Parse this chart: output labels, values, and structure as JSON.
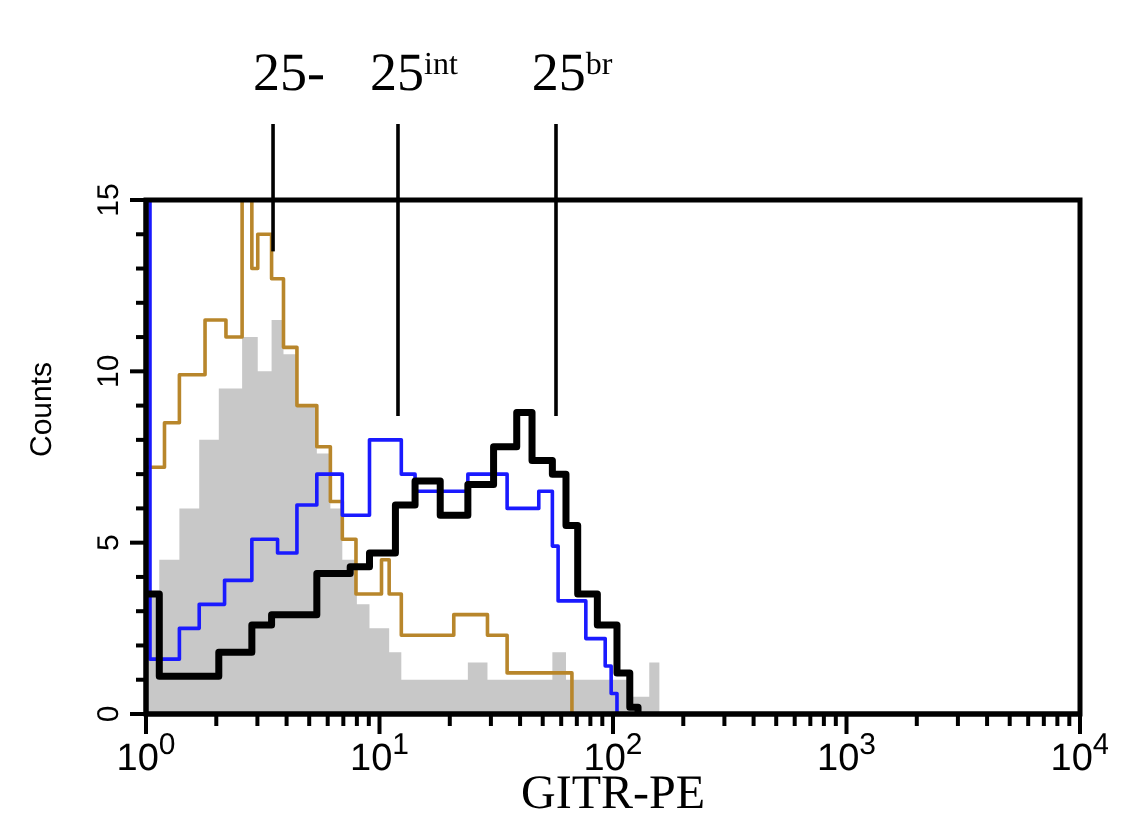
{
  "chart_data": {
    "type": "step",
    "xlabel": "GITR-PE",
    "ylabel": "Counts",
    "log": "x",
    "xlim": [
      1,
      10000
    ],
    "xticks": [
      {
        "value": 1,
        "label": "10$^{0}$"
      },
      {
        "value": 2,
        "label": null
      },
      {
        "value": 3,
        "label": null
      },
      {
        "value": 4,
        "label": null
      },
      {
        "value": 5,
        "label": null
      },
      {
        "value": 6,
        "label": null
      },
      {
        "value": 7,
        "label": null
      },
      {
        "value": 8,
        "label": null
      },
      {
        "value": 9,
        "label": null
      },
      {
        "value": 10,
        "label": "10$^{1}$"
      },
      {
        "value": 20,
        "label": null
      },
      {
        "value": 30,
        "label": null
      },
      {
        "value": 40,
        "label": null
      },
      {
        "value": 50,
        "label": null
      },
      {
        "value": 60,
        "label": null
      },
      {
        "value": 70,
        "label": null
      },
      {
        "value": 80,
        "label": null
      },
      {
        "value": 90,
        "label": null
      },
      {
        "value": 100,
        "label": "10$^{2}$"
      },
      {
        "value": 200,
        "label": null
      },
      {
        "value": 300,
        "label": null
      },
      {
        "value": 400,
        "label": null
      },
      {
        "value": 500,
        "label": null
      },
      {
        "value": 600,
        "label": null
      },
      {
        "value": 700,
        "label": null
      },
      {
        "value": 800,
        "label": null
      },
      {
        "value": 900,
        "label": null
      },
      {
        "value": 1000,
        "label": "10$^{3}$"
      },
      {
        "value": 2000,
        "label": null
      },
      {
        "value": 3000,
        "label": null
      },
      {
        "value": 4000,
        "label": null
      },
      {
        "value": 5000,
        "label": null
      },
      {
        "value": 6000,
        "label": null
      },
      {
        "value": 7000,
        "label": null
      },
      {
        "value": 8000,
        "label": null
      },
      {
        "value": 9000,
        "label": null
      },
      {
        "value": 10000,
        "label": "10$^{4}$"
      }
    ],
    "ylim": [
      0,
      15
    ],
    "yticks": [
      0,
      {
        "value": 1,
        "label": null
      },
      {
        "value": 2,
        "label": null
      },
      {
        "value": 3,
        "label": null
      },
      {
        "value": 4,
        "label": null
      },
      5,
      {
        "value": 6,
        "label": null
      },
      {
        "value": 7,
        "label": null
      },
      {
        "value": 8,
        "label": null
      },
      {
        "value": 9,
        "label": null
      },
      10,
      {
        "value": 11,
        "label": null
      },
      {
        "value": 12,
        "label": null
      },
      {
        "value": 13,
        "label": null
      },
      {
        "value": 14,
        "label": null
      },
      15
    ],
    "series": [
      {
        "type": "area",
        "color": "#c8c8c8",
        "x": [
          1,
          1.14,
          1.39,
          1.69,
          2.05,
          2.58,
          3.01,
          3.45,
          3.88,
          4.43,
          5.39,
          6.16,
          6.93,
          8.0,
          9.06,
          11.0,
          12.4,
          20.8,
          23.9,
          29.0,
          45,
          55,
          62.9,
          104,
          118,
          143,
          158
        ],
        "values": [
          3.5,
          4.5,
          6,
          8,
          9.5,
          11,
          10,
          11.5,
          10.5,
          9,
          7.6,
          6,
          4.5,
          3.2,
          2.5,
          1.8,
          1,
          1,
          1.5,
          1,
          1,
          1.8,
          1,
          1,
          0.5,
          1.5,
          0
        ]
      },
      {
        "color": "#b8862b",
        "x": [
          1,
          1.2,
          1.39,
          1.79,
          2.2,
          2.58,
          2.84,
          3.01,
          3.45,
          3.88,
          4.43,
          5.39,
          6.16,
          6.93,
          7.93,
          10.2,
          11.0,
          12.4,
          14.2,
          20.8,
          29.0,
          35.2,
          66.7,
          118
        ],
        "values": [
          7.2,
          8.5,
          9.9,
          11.5,
          11,
          15,
          13,
          14,
          12.7,
          10.7,
          9,
          7.8,
          6.2,
          5.1,
          3.5,
          4.5,
          3.5,
          2.3,
          2.3,
          2.9,
          2.3,
          1.2,
          0,
          0
        ]
      },
      {
        "color": "#1a1aff",
        "x": [
          1,
          1.04,
          1.39,
          1.69,
          2.17,
          2.84,
          3.66,
          4.43,
          5.39,
          6.93,
          9.06,
          12.4,
          14.2,
          23.9,
          35.2,
          48.1,
          55,
          58.2,
          76.5,
          92.6,
          98.2,
          104,
          118
        ],
        "values": [
          15,
          1.6,
          2.5,
          3.2,
          3.9,
          5.1,
          4.7,
          6.1,
          7,
          5.8,
          8,
          7,
          6.5,
          7,
          6,
          6.5,
          4.9,
          3.3,
          2.2,
          1.4,
          0.6,
          0,
          0
        ]
      },
      {
        "color": "#000000",
        "x": [
          1,
          1.14,
          2.05,
          2.84,
          3.45,
          5.39,
          7.49,
          9.06,
          11.7,
          14.2,
          18.2,
          23.9,
          30.8,
          38.7,
          45,
          55,
          62.9,
          70.6,
          85.7,
          104,
          118,
          128
        ],
        "values": [
          3.5,
          1.1,
          1.8,
          2.6,
          2.9,
          4.1,
          4.3,
          4.7,
          6.1,
          6.8,
          5.8,
          6.7,
          7.8,
          8.8,
          7.4,
          7,
          5.5,
          3.5,
          2.6,
          1.2,
          0.2,
          0
        ]
      }
    ],
    "annotations": [
      {
        "text": "25-",
        "x": 3.5,
        "y": 13.5
      },
      {
        "text": "25$^{int}$",
        "x": 12
      },
      {
        "text": "25$^{br}$",
        "x": 57
      }
    ]
  }
}
